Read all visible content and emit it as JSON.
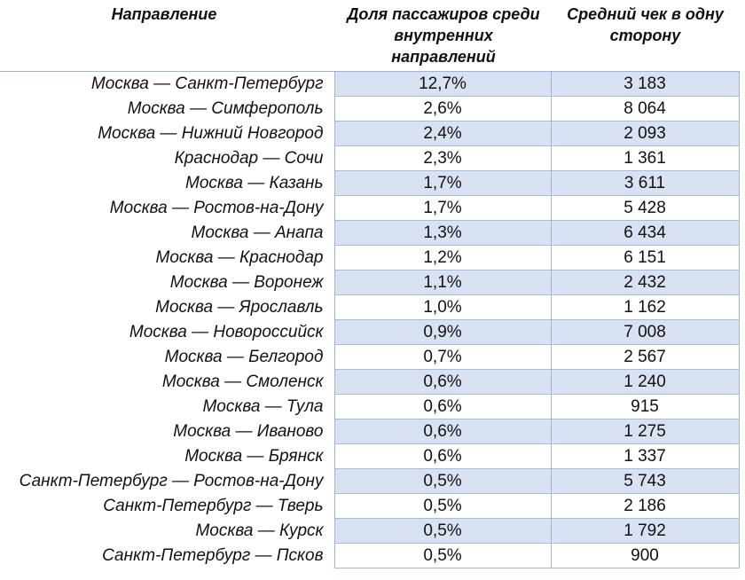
{
  "table": {
    "headers": {
      "direction": "Направление",
      "share": "Доля пассажиров среди внутренних направлений",
      "avg_check": "Средний чек в одну сторону"
    },
    "rows": [
      {
        "direction": "Москва — Санкт-Петербург",
        "share": "12,7%",
        "avg_check": "3 183"
      },
      {
        "direction": "Москва — Симферополь",
        "share": "2,6%",
        "avg_check": "8 064"
      },
      {
        "direction": "Москва — Нижний Новгород",
        "share": "2,4%",
        "avg_check": "2 093"
      },
      {
        "direction": "Краснодар — Сочи",
        "share": "2,3%",
        "avg_check": "1 361"
      },
      {
        "direction": "Москва — Казань",
        "share": "1,7%",
        "avg_check": "3 611"
      },
      {
        "direction": "Москва — Ростов-на-Дону",
        "share": "1,7%",
        "avg_check": "5 428"
      },
      {
        "direction": "Москва — Анапа",
        "share": "1,3%",
        "avg_check": "6 434"
      },
      {
        "direction": "Москва — Краснодар",
        "share": "1,2%",
        "avg_check": "6 151"
      },
      {
        "direction": "Москва — Воронеж",
        "share": "1,1%",
        "avg_check": "2 432"
      },
      {
        "direction": "Москва — Ярославль",
        "share": "1,0%",
        "avg_check": "1 162"
      },
      {
        "direction": "Москва — Новороссийск",
        "share": "0,9%",
        "avg_check": "7 008"
      },
      {
        "direction": "Москва — Белгород",
        "share": "0,7%",
        "avg_check": "2 567"
      },
      {
        "direction": "Москва — Смоленск",
        "share": "0,6%",
        "avg_check": "1 240"
      },
      {
        "direction": "Москва — Тула",
        "share": "0,6%",
        "avg_check": "915"
      },
      {
        "direction": "Москва — Иваново",
        "share": "0,6%",
        "avg_check": "1 275"
      },
      {
        "direction": "Москва — Брянск",
        "share": "0,6%",
        "avg_check": "1 337"
      },
      {
        "direction": "Санкт-Петербург — Ростов-на-Дону",
        "share": "0,5%",
        "avg_check": "5 743"
      },
      {
        "direction": "Санкт-Петербург — Тверь",
        "share": "0,5%",
        "avg_check": "2 186"
      },
      {
        "direction": "Москва — Курск",
        "share": "0,5%",
        "avg_check": "1 792"
      },
      {
        "direction": "Санкт-Петербург — Псков",
        "share": "0,5%",
        "avg_check": "900"
      }
    ]
  },
  "colors": {
    "shade": "#d9e2f3",
    "border": "#9fb3d6"
  }
}
